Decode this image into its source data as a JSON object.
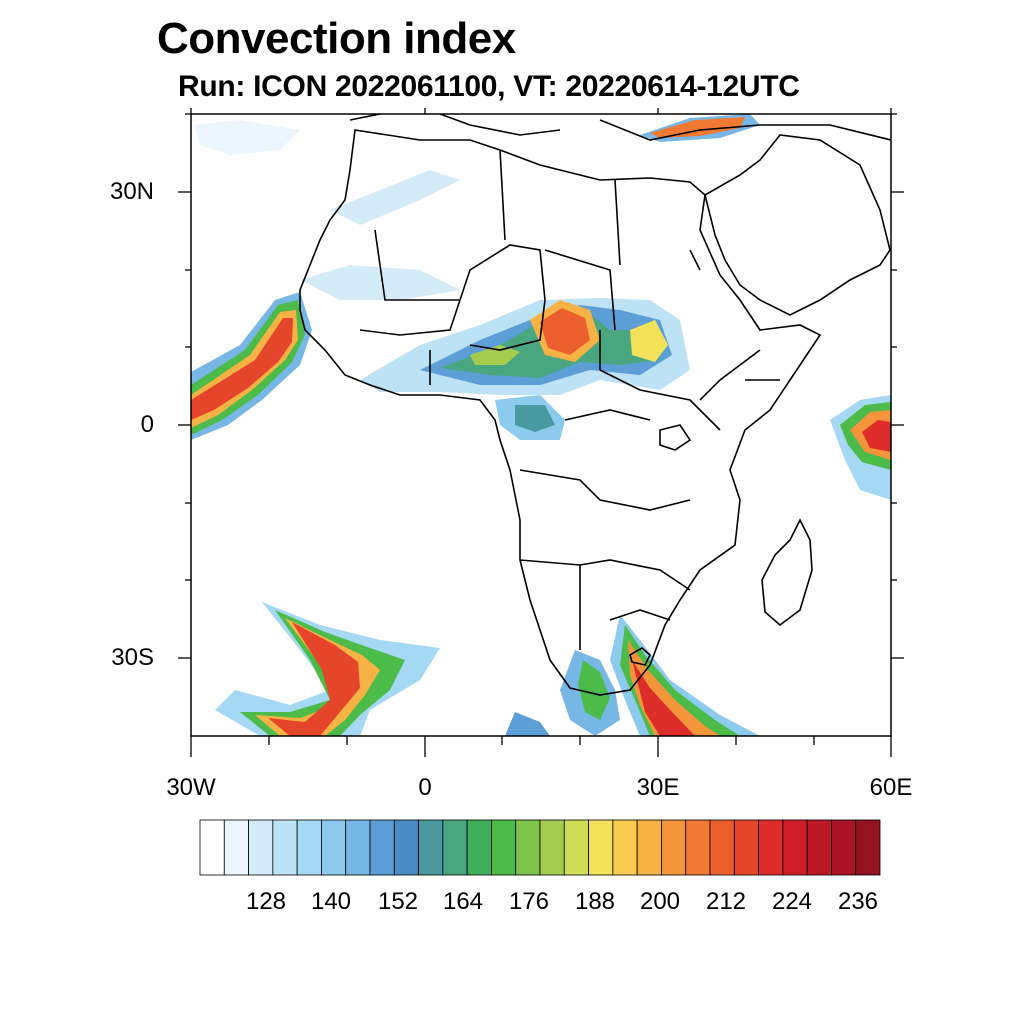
{
  "title": "Convection index",
  "subtitle": "Run: ICON 2022061100,  VT: 20220614-12UTC",
  "map": {
    "lon_range": [
      -30,
      60
    ],
    "lat_range": [
      -40,
      40
    ],
    "y_tick_labels": [
      {
        "label": "30N",
        "lat": 30
      },
      {
        "label": "0",
        "lat": 0
      },
      {
        "label": "30S",
        "lat": -30
      }
    ],
    "x_tick_labels": [
      {
        "label": "30W",
        "lon": -30
      },
      {
        "label": "0",
        "lon": 0
      },
      {
        "label": "30E",
        "lon": 30
      },
      {
        "label": "60E",
        "lon": 60
      }
    ]
  },
  "colorbar": {
    "labels": [
      "128",
      "140",
      "152",
      "164",
      "176",
      "188",
      "200",
      "212",
      "224",
      "236"
    ],
    "colors": [
      "#ffffff",
      "#eaf6fc",
      "#d3ecf8",
      "#bde2f5",
      "#a4d8f3",
      "#8ccbee",
      "#76b7e5",
      "#5c9fd6",
      "#4a8bc2",
      "#4a99a0",
      "#49a681",
      "#3fae5b",
      "#4dbb4a",
      "#7dc24a",
      "#a6cc4f",
      "#cfdc55",
      "#f2e25a",
      "#f8cc4e",
      "#f6b244",
      "#f4953b",
      "#f07934",
      "#eb5f2e",
      "#e5452b",
      "#dd2d2a",
      "#cf1e29",
      "#bd1827",
      "#a91524",
      "#941320"
    ]
  }
}
